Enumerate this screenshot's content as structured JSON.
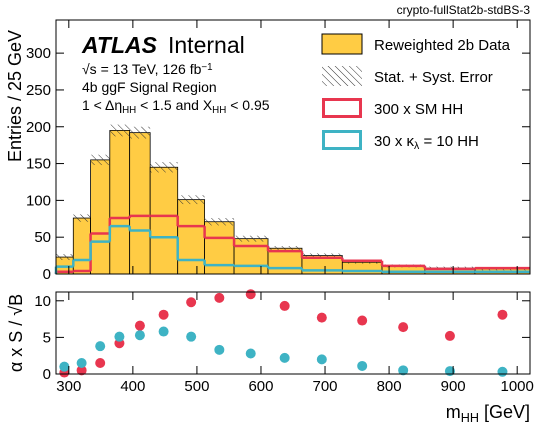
{
  "tag": "crypto-fullStat2b-stdBS-3",
  "chart_data": [
    {
      "type": "histogram",
      "brand": "ATLAS",
      "status": "Internal",
      "annotations": [
        [
          {
            "text": "√s = 13 TeV, 126 fb"
          },
          {
            "sup": "−1"
          }
        ],
        [
          {
            "text": "4b ggF Signal Region"
          }
        ],
        [
          {
            "text": "1 < Δη"
          },
          {
            "sub": "HH"
          },
          {
            "text": " < 1.5 and X"
          },
          {
            "sub": "HH"
          },
          {
            "text": " < 0.95"
          }
        ]
      ],
      "ylabel": "Entries / 25 GeV",
      "bins": [
        280,
        307,
        334,
        364,
        395,
        427,
        470,
        512,
        558,
        611,
        664,
        727,
        789,
        856,
        934,
        1020
      ],
      "series": [
        {
          "name": "Reweighted 2b Data",
          "color": "#ffcc44",
          "style": "filled",
          "values": [
            23,
            76,
            155,
            195,
            192,
            145,
            101,
            71,
            48,
            35,
            25,
            16,
            11,
            8,
            7
          ]
        },
        {
          "name": "300 x SM HH",
          "color": "#e8364f",
          "style": "step",
          "values": [
            3,
            4,
            55,
            76,
            79,
            79,
            65,
            49,
            38,
            31,
            22,
            18,
            11,
            7,
            8
          ]
        },
        {
          "name": [
            {
              "text": "30 x κ"
            },
            {
              "sub": "λ"
            },
            {
              "text": " = 10 HH"
            }
          ],
          "color": "#3eb3c4",
          "style": "step",
          "values": [
            10,
            19,
            44,
            65,
            59,
            50,
            19,
            12,
            11,
            8,
            5,
            4,
            3,
            3,
            3
          ]
        }
      ],
      "error_band": {
        "name": "Stat. + Syst. Error",
        "of_series": 0,
        "values": [
          4,
          5,
          7,
          8,
          8,
          7,
          6,
          5,
          4,
          3,
          3,
          2,
          2,
          2,
          2
        ]
      },
      "xlim": [
        280,
        1020
      ],
      "xticks": [
        300,
        400,
        500,
        600,
        700,
        800,
        900,
        1000
      ],
      "ylim": [
        0,
        345
      ],
      "yticks": [
        0,
        50,
        100,
        150,
        200,
        250,
        300
      ]
    },
    {
      "type": "scatter",
      "ylabel": "α x S / √B",
      "xlabel": [
        {
          "text": "m"
        },
        {
          "sub": "HH"
        },
        {
          "text": " [GeV]"
        }
      ],
      "x": [
        293,
        320,
        349,
        379,
        411,
        448,
        491,
        535,
        584,
        637,
        695,
        758,
        822,
        895,
        977
      ],
      "series": [
        {
          "name": "300 x SM HH",
          "color": "#e8364f",
          "values": [
            0.2,
            0.5,
            1.5,
            4.2,
            6.6,
            8.1,
            9.8,
            10.4,
            10.9,
            9.3,
            7.7,
            7.3,
            6.4,
            5.2,
            8.1
          ]
        },
        {
          "name": "30 x kl = 10 HH",
          "color": "#3eb3c4",
          "values": [
            1.0,
            1.5,
            3.8,
            5.1,
            5.3,
            5.8,
            5.1,
            3.3,
            2.8,
            2.2,
            2.0,
            1.1,
            0.5,
            0.4,
            0.3
          ]
        }
      ],
      "xlim": [
        280,
        1020
      ],
      "xticks": [
        300,
        400,
        500,
        600,
        700,
        800,
        900,
        1000
      ],
      "ylim": [
        0,
        11.2
      ],
      "yticks": [
        0,
        5,
        10
      ]
    }
  ]
}
